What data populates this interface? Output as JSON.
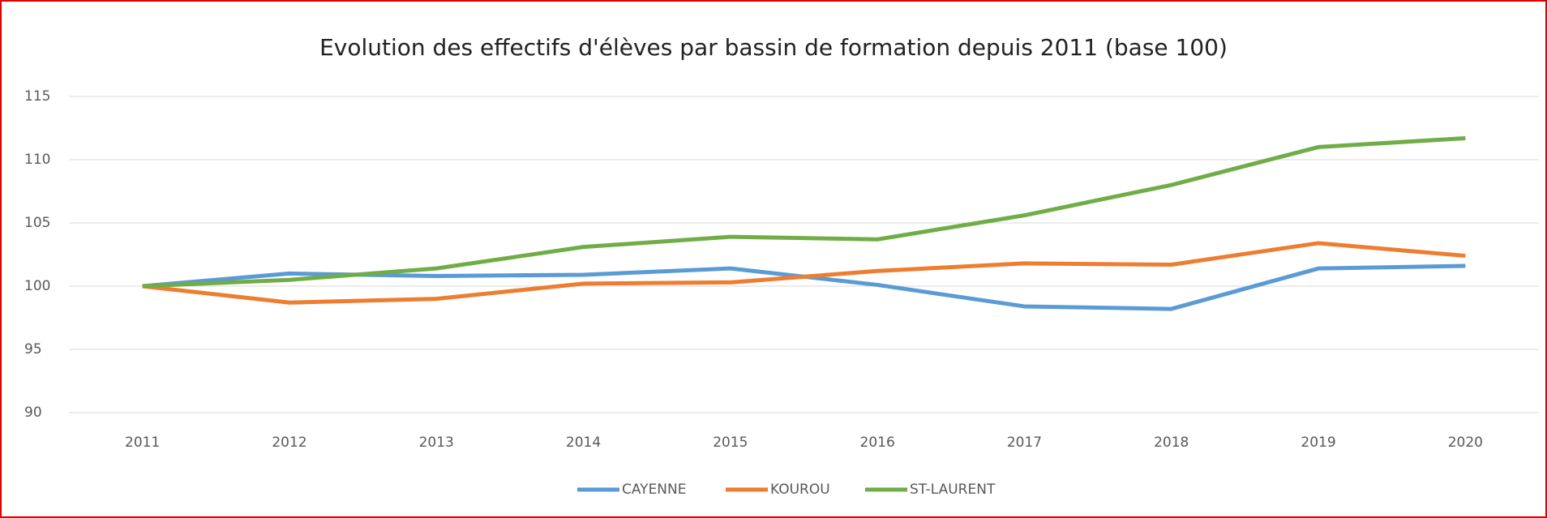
{
  "chart_data": {
    "type": "line",
    "title": "Evolution des effectifs d'élèves par bassin de formation depuis 2011 (base 100)",
    "categories": [
      "2011",
      "2012",
      "2013",
      "2014",
      "2015",
      "2016",
      "2017",
      "2018",
      "2019",
      "2020"
    ],
    "series": [
      {
        "name": "CAYENNE",
        "color": "#5b9bd5",
        "values": [
          100,
          101,
          100.8,
          100.9,
          101.4,
          100.1,
          98.4,
          98.2,
          101.4,
          101.6
        ]
      },
      {
        "name": "KOUROU",
        "color": "#ed7d31",
        "values": [
          100,
          98.7,
          99,
          100.2,
          100.3,
          101.2,
          101.8,
          101.7,
          103.4,
          102.4
        ]
      },
      {
        "name": "ST-LAURENT",
        "color": "#70ad47",
        "values": [
          100,
          100.5,
          101.4,
          103.1,
          103.9,
          103.7,
          105.6,
          108,
          111,
          111.7
        ]
      }
    ],
    "ylim": [
      90,
      115
    ],
    "yticks": [
      90,
      95,
      100,
      105,
      110,
      115
    ],
    "grid": true,
    "legend": "bottom"
  }
}
